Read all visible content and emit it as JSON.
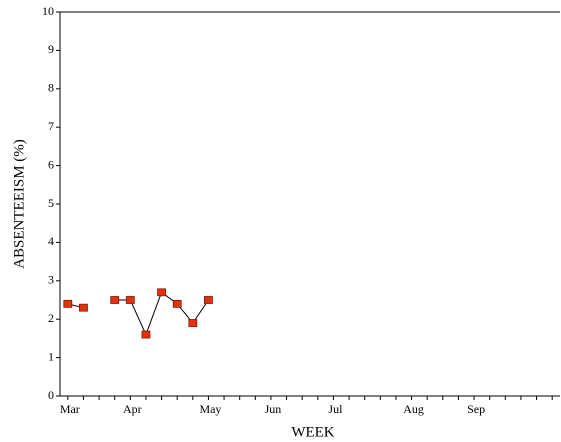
{
  "chart_data": {
    "type": "line",
    "x_label": "WEEK",
    "y_label": "ABSENTEEISM (%)",
    "categories": [
      "Mar",
      null,
      null,
      null,
      "Apr",
      null,
      null,
      null,
      null,
      "May",
      null,
      null,
      null,
      "Jun",
      null,
      null,
      null,
      "Jul",
      null,
      null,
      null,
      null,
      "Aug",
      null,
      null,
      null,
      "Sep",
      null,
      null,
      null,
      null,
      null
    ],
    "series": [
      {
        "color": "#e8300c",
        "values": [
          2.4,
          2.3,
          null,
          2.5,
          2.5,
          1.6,
          2.7,
          2.4,
          1.9,
          2.5,
          null,
          null,
          null,
          null,
          null,
          null,
          null,
          null,
          null,
          null,
          null,
          null,
          null,
          null,
          null,
          null,
          null,
          null,
          null,
          null,
          null,
          null
        ]
      }
    ],
    "ylim": [
      0,
      10
    ],
    "yticks": [
      0,
      1,
      2,
      3,
      4,
      5,
      6,
      7,
      8,
      9,
      10
    ]
  }
}
